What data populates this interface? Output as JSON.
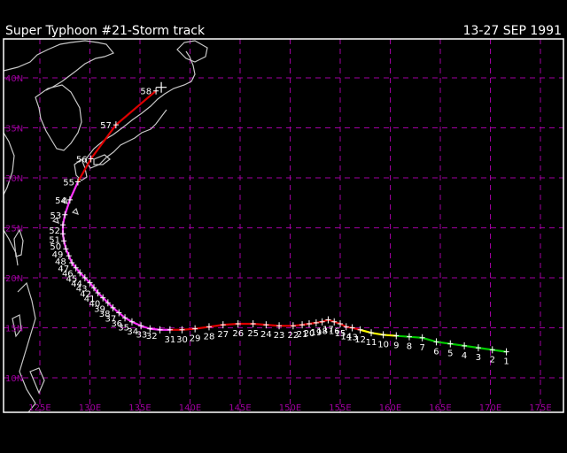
{
  "header": {
    "title": "Super Typhoon  #21-Storm track",
    "dates": "13-27 SEP 1991"
  },
  "axes": {
    "lat_labels": [
      "40N",
      "35N",
      "30N",
      "25N",
      "20N",
      "15N",
      "10N"
    ],
    "lon_labels": [
      "125E",
      "130E",
      "135E",
      "140E",
      "145E",
      "150E",
      "155E",
      "160E",
      "165E",
      "170E",
      "175E"
    ]
  },
  "colors": {
    "grid": "#a000a0",
    "coast": "#c8c8c8",
    "frame": "#ffffff",
    "depression": "#00cc00",
    "storm": "#ffff00",
    "typhoon": "#dd0000",
    "super_typhoon": "#ff33ff"
  },
  "track": [
    {
      "n": "1",
      "lon": 171.6,
      "lat": 12.6,
      "cat": "depression"
    },
    {
      "n": "2",
      "lon": 170.2,
      "lat": 12.8,
      "cat": "depression"
    },
    {
      "n": "3",
      "lon": 168.8,
      "lat": 13.0,
      "cat": "depression"
    },
    {
      "n": "4",
      "lon": 167.4,
      "lat": 13.2,
      "cat": "depression"
    },
    {
      "n": "5",
      "lon": 166.0,
      "lat": 13.4,
      "cat": "depression"
    },
    {
      "n": "6",
      "lon": 164.6,
      "lat": 13.6,
      "cat": "depression"
    },
    {
      "n": "7",
      "lon": 163.2,
      "lat": 14.0,
      "cat": "depression"
    },
    {
      "n": "8",
      "lon": 161.9,
      "lat": 14.1,
      "cat": "depression"
    },
    {
      "n": "9",
      "lon": 160.6,
      "lat": 14.2,
      "cat": "depression"
    },
    {
      "n": "10",
      "lon": 159.3,
      "lat": 14.3,
      "cat": "storm"
    },
    {
      "n": "11",
      "lon": 158.1,
      "lat": 14.5,
      "cat": "storm"
    },
    {
      "n": "12",
      "lon": 157.0,
      "lat": 14.8,
      "cat": "storm"
    },
    {
      "n": "13",
      "lon": 156.2,
      "lat": 15.0,
      "cat": "typhoon"
    },
    {
      "n": "14",
      "lon": 155.6,
      "lat": 15.1,
      "cat": "typhoon"
    },
    {
      "n": "15",
      "lon": 155.0,
      "lat": 15.4,
      "cat": "typhoon"
    },
    {
      "n": "16",
      "lon": 154.4,
      "lat": 15.6,
      "cat": "typhoon"
    },
    {
      "n": "17",
      "lon": 153.8,
      "lat": 15.8,
      "cat": "typhoon"
    },
    {
      "n": "18",
      "lon": 153.2,
      "lat": 15.6,
      "cat": "typhoon"
    },
    {
      "n": "19",
      "lon": 152.6,
      "lat": 15.5,
      "cat": "typhoon"
    },
    {
      "n": "20",
      "lon": 151.9,
      "lat": 15.4,
      "cat": "typhoon"
    },
    {
      "n": "21",
      "lon": 151.2,
      "lat": 15.3,
      "cat": "typhoon"
    },
    {
      "n": "22",
      "lon": 150.3,
      "lat": 15.2,
      "cat": "typhoon"
    },
    {
      "n": "23",
      "lon": 148.9,
      "lat": 15.2,
      "cat": "typhoon"
    },
    {
      "n": "24",
      "lon": 147.6,
      "lat": 15.3,
      "cat": "typhoon"
    },
    {
      "n": "25",
      "lon": 146.3,
      "lat": 15.4,
      "cat": "typhoon"
    },
    {
      "n": "26",
      "lon": 144.8,
      "lat": 15.4,
      "cat": "typhoon"
    },
    {
      "n": "27",
      "lon": 143.3,
      "lat": 15.3,
      "cat": "typhoon"
    },
    {
      "n": "28",
      "lon": 141.9,
      "lat": 15.1,
      "cat": "typhoon"
    },
    {
      "n": "29",
      "lon": 140.5,
      "lat": 14.9,
      "cat": "typhoon"
    },
    {
      "n": "30",
      "lon": 139.2,
      "lat": 14.8,
      "cat": "typhoon"
    },
    {
      "n": "31",
      "lon": 138.0,
      "lat": 14.8,
      "cat": "typhoon"
    },
    {
      "n": "32",
      "lon": 137.0,
      "lat": 14.8,
      "cat": "super_typhoon"
    },
    {
      "n": "33",
      "lon": 136.0,
      "lat": 14.9,
      "cat": "super_typhoon"
    },
    {
      "n": "34",
      "lon": 135.1,
      "lat": 15.2,
      "cat": "super_typhoon"
    },
    {
      "n": "35",
      "lon": 134.2,
      "lat": 15.6,
      "cat": "super_typhoon"
    },
    {
      "n": "36",
      "lon": 133.5,
      "lat": 16.0,
      "cat": "super_typhoon"
    },
    {
      "n": "37",
      "lon": 132.9,
      "lat": 16.5,
      "cat": "super_typhoon"
    },
    {
      "n": "38",
      "lon": 132.3,
      "lat": 17.0,
      "cat": "super_typhoon"
    },
    {
      "n": "39",
      "lon": 131.8,
      "lat": 17.5,
      "cat": "super_typhoon"
    },
    {
      "n": "40",
      "lon": 131.3,
      "lat": 18.0,
      "cat": "super_typhoon"
    },
    {
      "n": "41",
      "lon": 130.8,
      "lat": 18.5,
      "cat": "super_typhoon"
    },
    {
      "n": "42",
      "lon": 130.4,
      "lat": 19.0,
      "cat": "super_typhoon"
    },
    {
      "n": "43",
      "lon": 130.0,
      "lat": 19.5,
      "cat": "super_typhoon"
    },
    {
      "n": "44",
      "lon": 129.5,
      "lat": 20.0,
      "cat": "super_typhoon"
    },
    {
      "n": "45",
      "lon": 129.0,
      "lat": 20.5,
      "cat": "super_typhoon"
    },
    {
      "n": "46",
      "lon": 128.6,
      "lat": 21.0,
      "cat": "super_typhoon"
    },
    {
      "n": "47",
      "lon": 128.2,
      "lat": 21.5,
      "cat": "super_typhoon"
    },
    {
      "n": "48",
      "lon": 127.9,
      "lat": 22.2,
      "cat": "super_typhoon"
    },
    {
      "n": "49",
      "lon": 127.6,
      "lat": 22.9,
      "cat": "super_typhoon"
    },
    {
      "n": "50",
      "lon": 127.4,
      "lat": 23.7,
      "cat": "super_typhoon"
    },
    {
      "n": "51",
      "lon": 127.3,
      "lat": 24.4,
      "cat": "super_typhoon"
    },
    {
      "n": "52",
      "lon": 127.3,
      "lat": 25.3,
      "cat": "super_typhoon"
    },
    {
      "n": "53",
      "lon": 127.5,
      "lat": 26.3,
      "cat": "super_typhoon"
    },
    {
      "n": "54",
      "lon": 128.0,
      "lat": 27.8,
      "cat": "super_typhoon"
    },
    {
      "n": "55",
      "lon": 128.8,
      "lat": 29.6,
      "cat": "super_typhoon"
    },
    {
      "n": "56",
      "lon": 130.1,
      "lat": 31.9,
      "cat": "typhoon"
    },
    {
      "n": "57",
      "lon": 132.6,
      "lat": 35.3,
      "cat": "typhoon"
    },
    {
      "n": "58",
      "lon": 136.6,
      "lat": 38.7,
      "cat": "typhoon"
    }
  ]
}
